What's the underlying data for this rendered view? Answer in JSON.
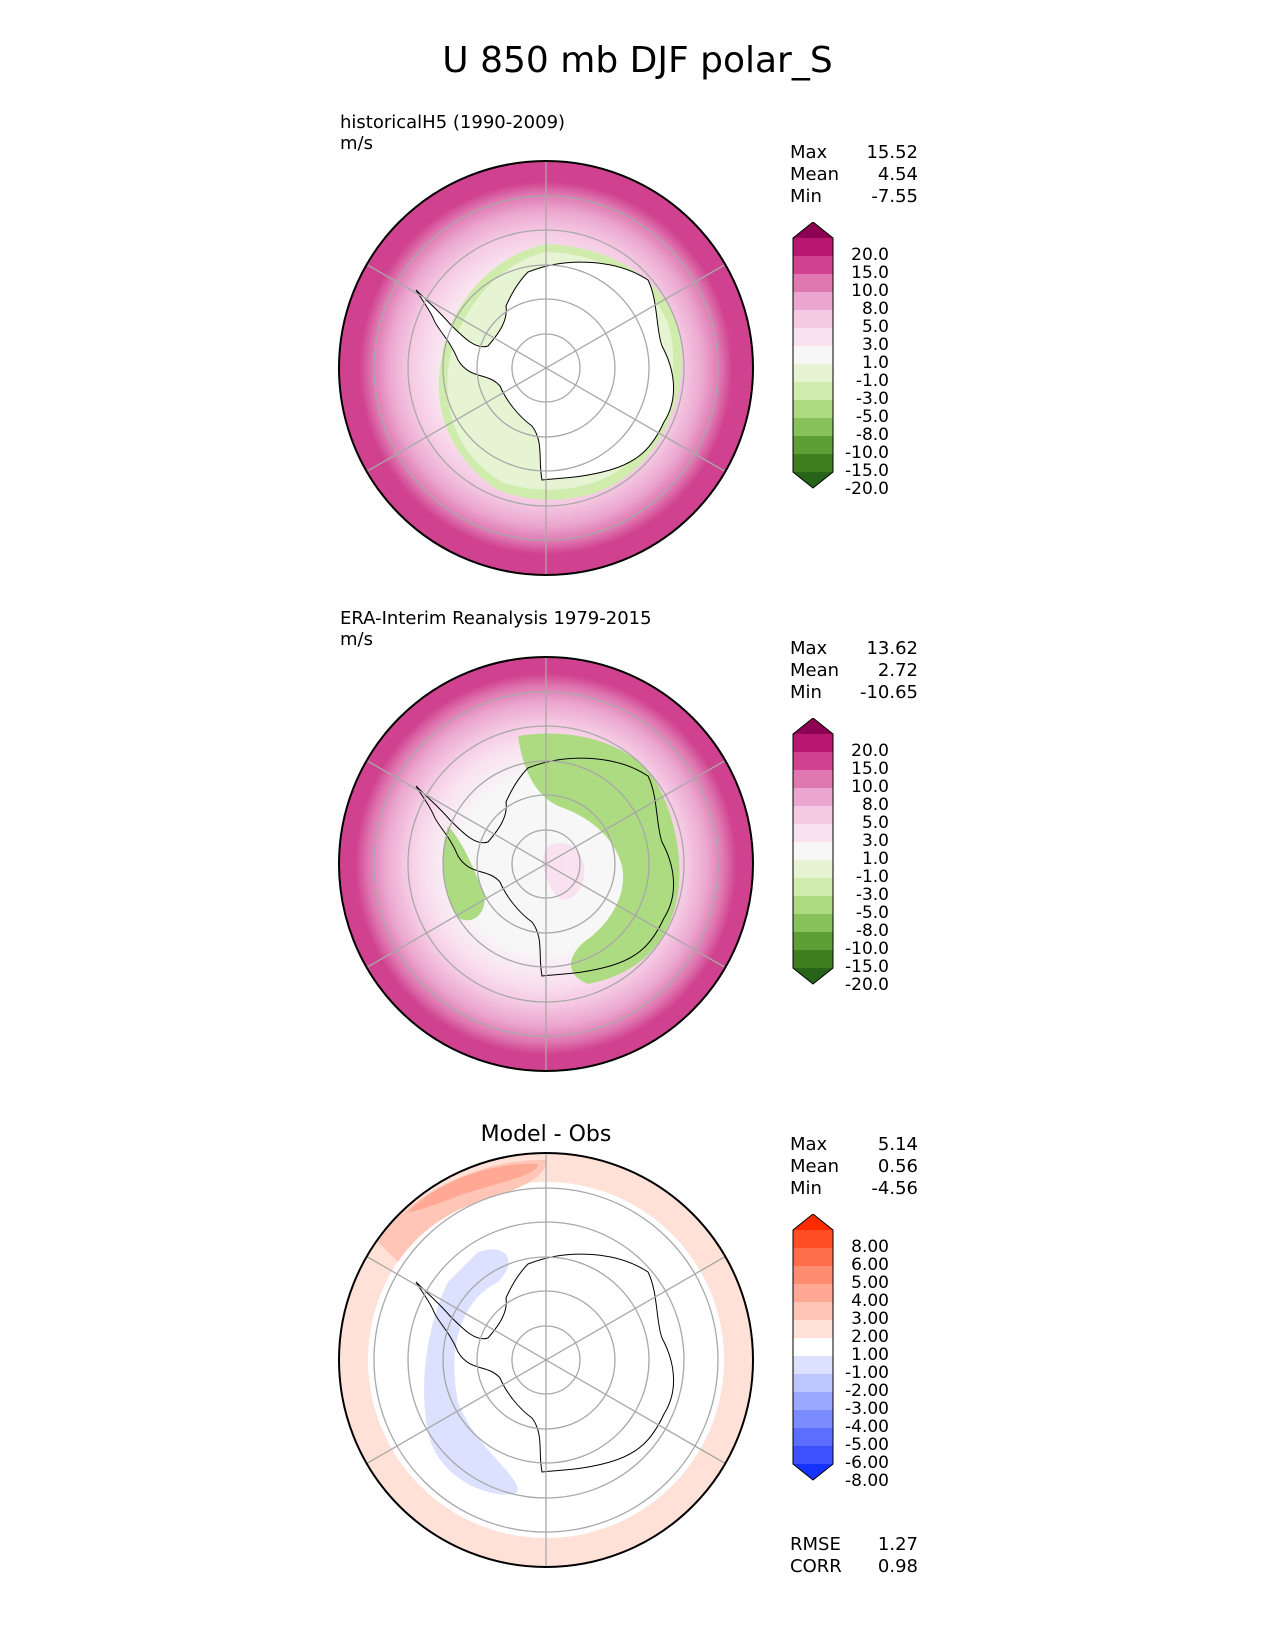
{
  "figure": {
    "title": "U 850 mb DJF polar_S"
  },
  "panels": [
    {
      "id": "test",
      "title_lines": [
        "historicalH5 (1990-2009)",
        "m/s"
      ],
      "stats": [
        {
          "label": "Max",
          "value": "15.52"
        },
        {
          "label": "Mean",
          "value": "4.54"
        },
        {
          "label": "Min",
          "value": "-7.55"
        }
      ]
    },
    {
      "id": "ref",
      "title_lines": [
        "ERA-Interim Reanalysis 1979-2015",
        "m/s"
      ],
      "stats": [
        {
          "label": "Max",
          "value": "13.62"
        },
        {
          "label": "Mean",
          "value": "2.72"
        },
        {
          "label": "Min",
          "value": "-10.65"
        }
      ]
    },
    {
      "id": "diff",
      "title": "Model - Obs",
      "stats": [
        {
          "label": "Max",
          "value": "5.14"
        },
        {
          "label": "Mean",
          "value": "0.56"
        },
        {
          "label": "Min",
          "value": "-4.56"
        }
      ],
      "metrics": [
        {
          "label": "RMSE",
          "value": "1.27"
        },
        {
          "label": "CORR",
          "value": "0.98"
        }
      ]
    }
  ],
  "colorbars": {
    "field": {
      "labels": [
        "20.0",
        "15.0",
        "10.0",
        "8.0",
        "5.0",
        "3.0",
        "1.0",
        "-1.0",
        "-3.0",
        "-5.0",
        "-8.0",
        "-10.0",
        "-15.0",
        "-20.0"
      ],
      "colors": [
        "#8e0152",
        "#b8176f",
        "#d0428f",
        "#df77b1",
        "#eba7cf",
        "#f5c9e3",
        "#f9e1ef",
        "#f7f7f7",
        "#e6f4d4",
        "#cfecad",
        "#addb82",
        "#86c159",
        "#5d9e35",
        "#3e7e1f",
        "#276419"
      ]
    },
    "diff": {
      "labels": [
        "8.00",
        "6.00",
        "5.00",
        "4.00",
        "3.00",
        "2.00",
        "1.00",
        "-1.00",
        "-2.00",
        "-3.00",
        "-4.00",
        "-5.00",
        "-6.00",
        "-8.00"
      ],
      "colors": [
        "#ff2b00",
        "#ff4d26",
        "#ff6d4a",
        "#ff8c70",
        "#ffa994",
        "#ffc5b6",
        "#ffe1d8",
        "#ffffff",
        "#dbe1ff",
        "#bcc6ff",
        "#9aa8ff",
        "#7b8cff",
        "#5b6eff",
        "#3c51ff",
        "#1433ff"
      ]
    }
  },
  "chart_data": [
    {
      "type": "heatmap",
      "projection": "south-polar-stereographic",
      "title": "historicalH5 (1990-2009)",
      "units": "m/s",
      "summary": {
        "max": 15.52,
        "mean": 4.54,
        "min": -7.55
      },
      "levels": [
        -20,
        -15,
        -10,
        -8,
        -5,
        -3,
        -1,
        1,
        3,
        5,
        8,
        10,
        15,
        20
      ]
    },
    {
      "type": "heatmap",
      "projection": "south-polar-stereographic",
      "title": "ERA-Interim Reanalysis 1979-2015",
      "units": "m/s",
      "summary": {
        "max": 13.62,
        "mean": 2.72,
        "min": -10.65
      },
      "levels": [
        -20,
        -15,
        -10,
        -8,
        -5,
        -3,
        -1,
        1,
        3,
        5,
        8,
        10,
        15,
        20
      ]
    },
    {
      "type": "heatmap",
      "projection": "south-polar-stereographic",
      "title": "Model - Obs",
      "summary": {
        "max": 5.14,
        "mean": 0.56,
        "min": -4.56
      },
      "metrics": {
        "rmse": 1.27,
        "corr": 0.98
      },
      "levels": [
        -8,
        -6,
        -5,
        -4,
        -3,
        -2,
        -1,
        1,
        2,
        3,
        4,
        5,
        6,
        8
      ]
    }
  ]
}
